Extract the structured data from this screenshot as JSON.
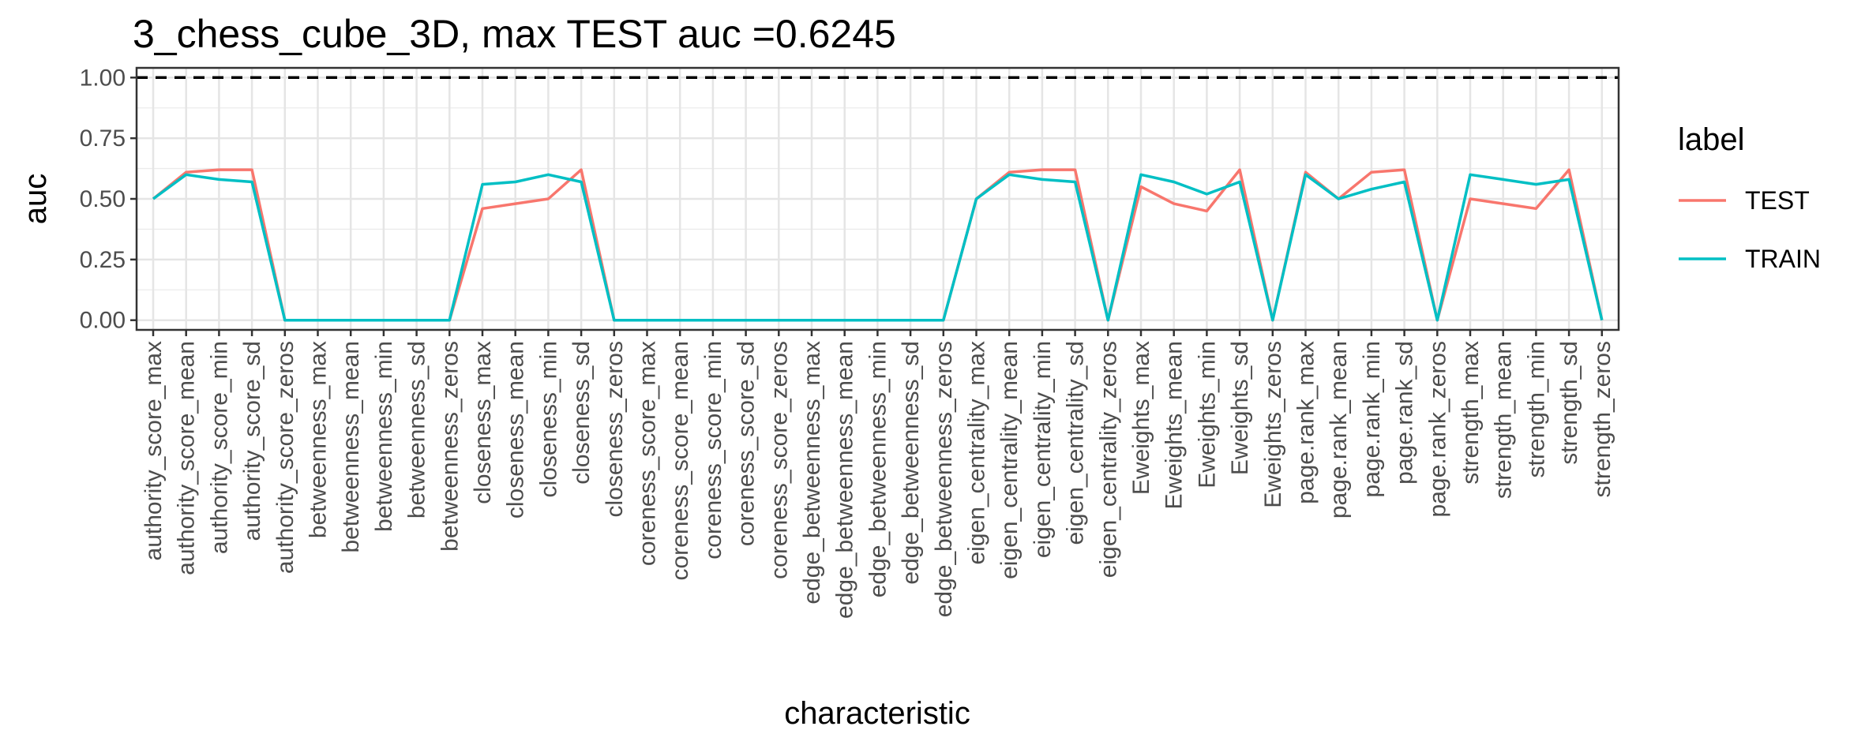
{
  "chart_data": {
    "type": "line",
    "title": "3_chess_cube_3D, max TEST auc =0.6245",
    "xlabel": "characteristic",
    "ylabel": "auc",
    "ylim": [
      -0.04,
      1.04
    ],
    "y_ticks": [
      "0.00",
      "0.25",
      "0.50",
      "0.75",
      "1.00"
    ],
    "reference_line": {
      "y": 1.0,
      "style": "dashed",
      "color": "#000000"
    },
    "grid": true,
    "legend": {
      "title": "label",
      "position": "right"
    },
    "categories": [
      "authority_score_max",
      "authority_score_mean",
      "authority_score_min",
      "authority_score_sd",
      "authority_score_zeros",
      "betweenness_max",
      "betweenness_mean",
      "betweenness_min",
      "betweenness_sd",
      "betweenness_zeros",
      "closeness_max",
      "closeness_mean",
      "closeness_min",
      "closeness_sd",
      "closeness_zeros",
      "coreness_score_max",
      "coreness_score_mean",
      "coreness_score_min",
      "coreness_score_sd",
      "coreness_score_zeros",
      "edge_betweenness_max",
      "edge_betweenness_mean",
      "edge_betweenness_min",
      "edge_betweenness_sd",
      "edge_betweenness_zeros",
      "eigen_centrality_max",
      "eigen_centrality_mean",
      "eigen_centrality_min",
      "eigen_centrality_sd",
      "eigen_centrality_zeros",
      "Eweights_max",
      "Eweights_mean",
      "Eweights_min",
      "Eweights_sd",
      "Eweights_zeros",
      "page.rank_max",
      "page.rank_mean",
      "page.rank_min",
      "page.rank_sd",
      "page.rank_zeros",
      "strength_max",
      "strength_mean",
      "strength_min",
      "strength_sd",
      "strength_zeros"
    ],
    "series": [
      {
        "name": "TEST",
        "color": "#F8766D",
        "values": [
          0.5,
          0.61,
          0.62,
          0.62,
          0.0,
          0.0,
          0.0,
          0.0,
          0.0,
          0.0,
          0.46,
          0.48,
          0.5,
          0.62,
          0.0,
          0.0,
          0.0,
          0.0,
          0.0,
          0.0,
          0.0,
          0.0,
          0.0,
          0.0,
          0.0,
          0.5,
          0.61,
          0.62,
          0.62,
          0.0,
          0.55,
          0.48,
          0.45,
          0.62,
          0.0,
          0.61,
          0.5,
          0.61,
          0.62,
          0.0,
          0.5,
          0.48,
          0.46,
          0.62,
          0.0
        ]
      },
      {
        "name": "TRAIN",
        "color": "#00BFC4",
        "values": [
          0.5,
          0.6,
          0.58,
          0.57,
          0.0,
          0.0,
          0.0,
          0.0,
          0.0,
          0.0,
          0.56,
          0.57,
          0.6,
          0.57,
          0.0,
          0.0,
          0.0,
          0.0,
          0.0,
          0.0,
          0.0,
          0.0,
          0.0,
          0.0,
          0.0,
          0.5,
          0.6,
          0.58,
          0.57,
          0.0,
          0.6,
          0.57,
          0.52,
          0.57,
          0.0,
          0.6,
          0.5,
          0.54,
          0.57,
          0.0,
          0.6,
          0.58,
          0.56,
          0.58,
          0.0
        ]
      }
    ]
  }
}
